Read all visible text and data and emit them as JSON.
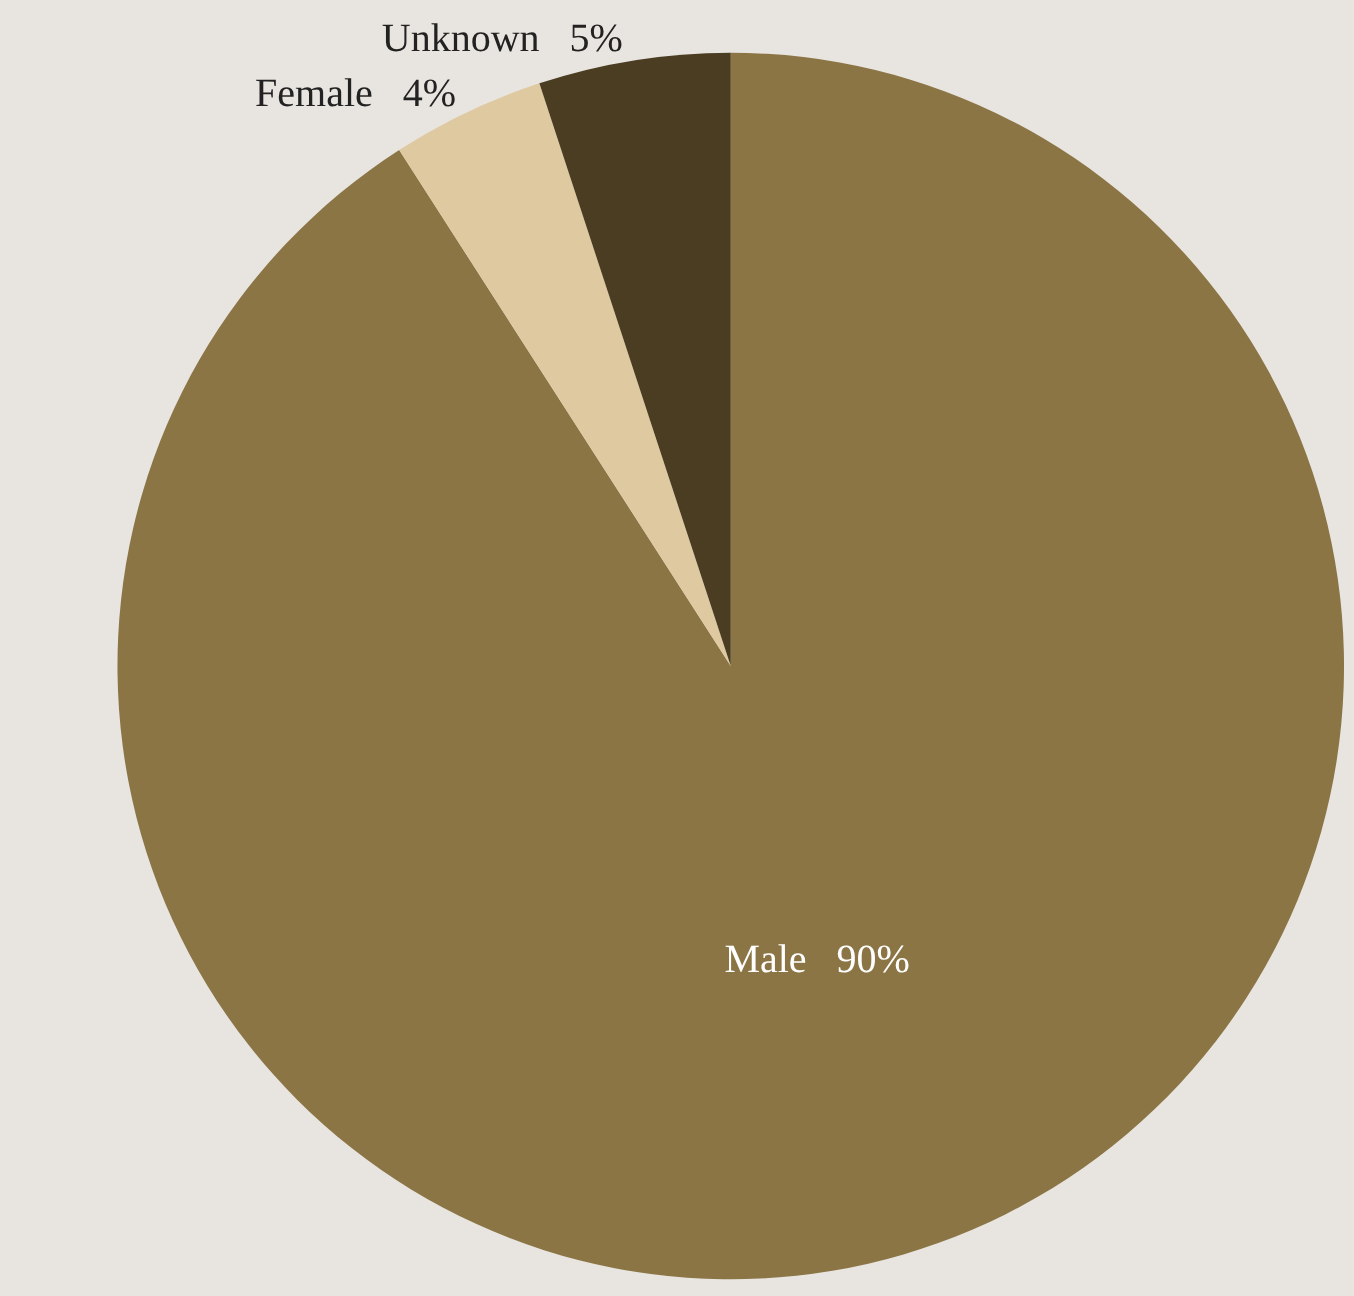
{
  "chart_data": {
    "type": "pie",
    "categories": [
      "Male",
      "Female",
      "Unknown"
    ],
    "values": [
      90,
      4,
      5
    ],
    "value_labels": [
      "90%",
      "4%",
      "5%"
    ],
    "colors": [
      "#8b7545",
      "#dfc9a0",
      "#4a3d22"
    ],
    "legend": false
  }
}
